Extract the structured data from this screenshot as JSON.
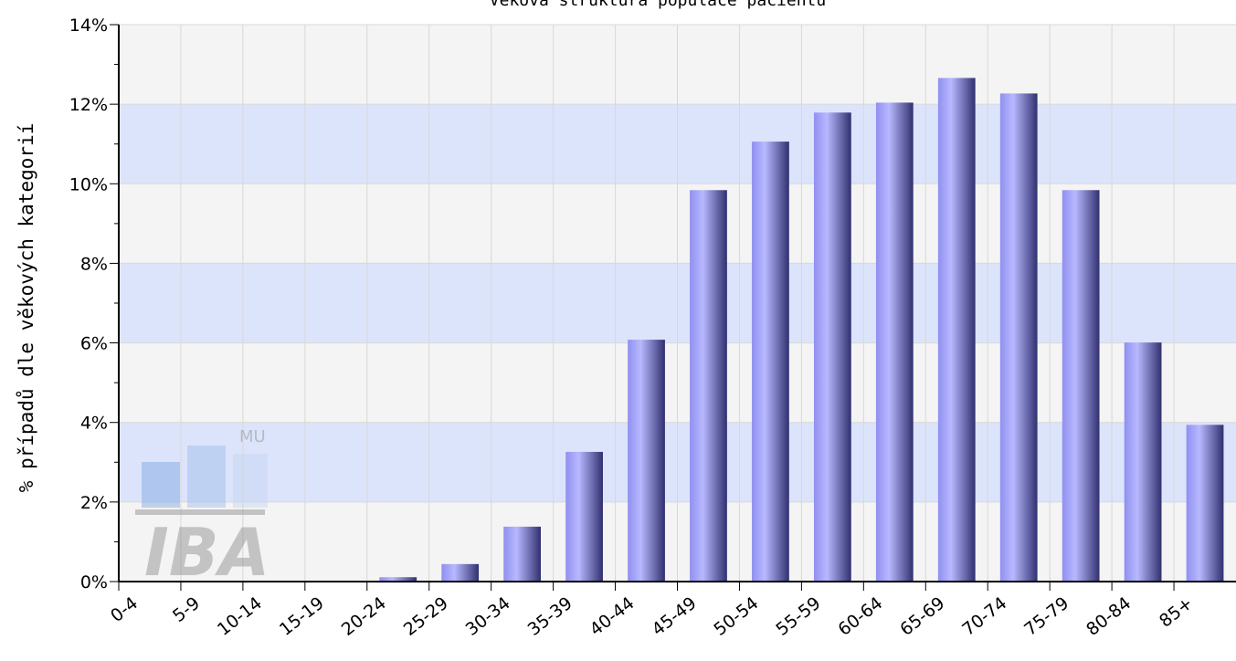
{
  "chart_data": {
    "type": "bar",
    "title": "Věková struktura populace pacientů",
    "y_label": "% případů dle věkových kategorií",
    "categories": [
      "0-4",
      "5-9",
      "10-14",
      "15-19",
      "20-24",
      "25-29",
      "30-34",
      "35-39",
      "40-44",
      "45-49",
      "50-54",
      "55-59",
      "60-64",
      "65-69",
      "70-74",
      "75-79",
      "80-84",
      "85+"
    ],
    "values": [
      0,
      0,
      0,
      0,
      0.11,
      0.44,
      1.38,
      3.26,
      6.08,
      9.84,
      11.06,
      11.79,
      12.04,
      12.66,
      12.27,
      9.84,
      6.01,
      3.94
    ],
    "color": "#9090f0",
    "ylim": [
      0,
      14
    ],
    "yticks": [
      {
        "value": 0,
        "label": "0%"
      },
      {
        "value": 2,
        "label": "2%"
      },
      {
        "value": 4,
        "label": "4%"
      },
      {
        "value": 6,
        "label": "6%"
      },
      {
        "value": 8,
        "label": "8%"
      },
      {
        "value": 10,
        "label": "10%"
      },
      {
        "value": 12,
        "label": "12%"
      },
      {
        "value": 14,
        "label": "14%"
      }
    ],
    "grid": true
  },
  "watermark": {
    "logo": "IBA",
    "org": "MU"
  }
}
